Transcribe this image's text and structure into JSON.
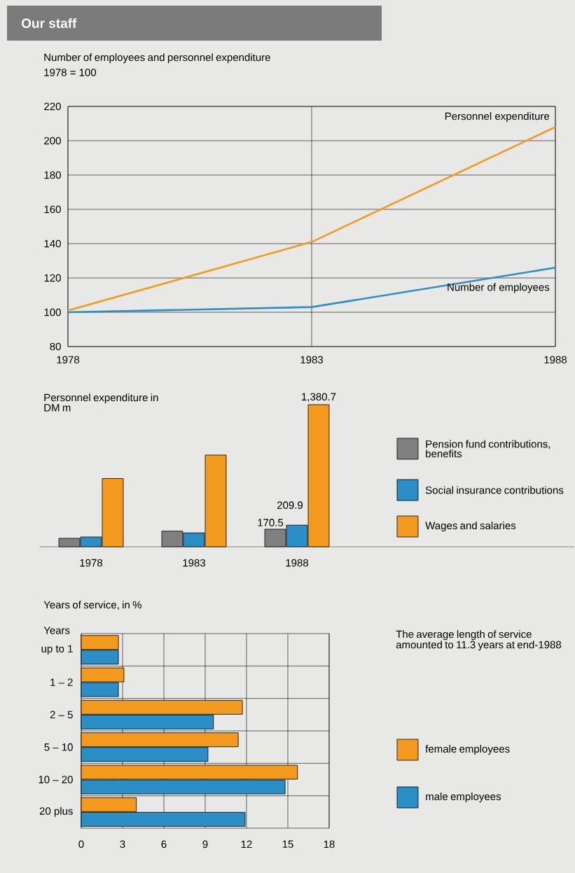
{
  "chart_data": [
    {
      "type": "line",
      "title": "Number of employees and personnel expenditure",
      "subtitle": "1978 = 100",
      "annotations": [
        "Our staff"
      ],
      "x": [
        1978,
        1983,
        1988
      ],
      "series": [
        {
          "name": "Personnel expenditure",
          "color": "#f39a1e",
          "values": [
            101,
            141,
            208
          ]
        },
        {
          "name": "Number of employees",
          "color": "#2b8ec6",
          "values": [
            100,
            103,
            126
          ]
        }
      ],
      "xlim": [
        1978,
        1988
      ],
      "xticks": [
        1978,
        1983,
        1988
      ],
      "ylim": [
        80,
        220
      ],
      "yticks": [
        80,
        100,
        120,
        140,
        160,
        180,
        200,
        220
      ],
      "grid": true
    },
    {
      "type": "bar",
      "title": "Personnel expenditure in DM m",
      "categories": [
        "1978",
        "1983",
        "1988"
      ],
      "series": [
        {
          "name": "Pension fund contributions, benefits",
          "color": "#808080",
          "values": [
            82,
            152,
            170.5
          ],
          "value_labels": [
            null,
            null,
            "170.5"
          ]
        },
        {
          "name": "Social insurance contributions",
          "color": "#2b8ec6",
          "values": [
            95,
            135,
            209.9
          ],
          "value_labels": [
            null,
            null,
            "209.9"
          ]
        },
        {
          "name": "Wages and salaries",
          "color": "#f39a1e",
          "values": [
            663,
            891,
            1380.7
          ],
          "value_labels": [
            null,
            null,
            "1,380.7"
          ]
        }
      ],
      "legend": "right"
    },
    {
      "type": "bar",
      "orientation": "horizontal",
      "title": "Years of service, in %",
      "ylabel": "Years",
      "categories": [
        "up to 1",
        "1 – 2",
        "2 – 5",
        "5 – 10",
        "10 – 20",
        "20 plus"
      ],
      "series": [
        {
          "name": "female employees",
          "color": "#f39a1e",
          "values": [
            2.7,
            3.1,
            11.7,
            11.4,
            15.7,
            4.0
          ]
        },
        {
          "name": "male employees",
          "color": "#2b8ec6",
          "values": [
            2.7,
            2.7,
            9.6,
            9.2,
            14.8,
            11.9
          ]
        }
      ],
      "xlim": [
        0,
        18
      ],
      "xticks": [
        0,
        3,
        6,
        9,
        12,
        15,
        18
      ],
      "grid": true,
      "legend": "right",
      "annotations": [
        "The average length of service amounted to 11.3 years at end-1988"
      ]
    }
  ]
}
